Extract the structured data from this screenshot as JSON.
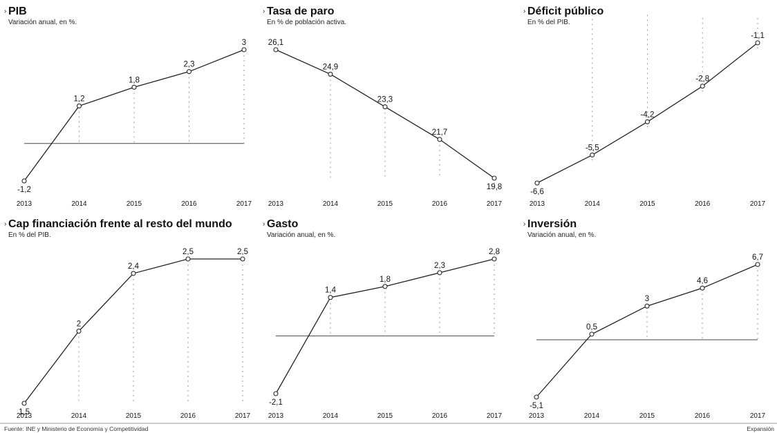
{
  "chart_data": [
    {
      "type": "line",
      "title": "PIB",
      "subtitle": "Variación anual, en %.",
      "x": [
        "2013",
        "2014",
        "2015",
        "2016",
        "2017"
      ],
      "values": [
        -1.2,
        1.2,
        1.8,
        2.3,
        3
      ],
      "value_labels": [
        "-1,2",
        "1,2",
        "1,8",
        "2,3",
        "3"
      ],
      "ylim": [
        -1.2,
        3
      ],
      "zero_line": true
    },
    {
      "type": "line",
      "title": "Tasa de paro",
      "subtitle": "En % de población activa.",
      "x": [
        "2013",
        "2014",
        "2015",
        "2016",
        "2017"
      ],
      "values": [
        26.1,
        24.9,
        23.3,
        21.7,
        19.8
      ],
      "value_labels": [
        "26,1",
        "24,9",
        "23,3",
        "21,7",
        "19,8"
      ],
      "ylim": [
        19.8,
        26.1
      ],
      "zero_line": false
    },
    {
      "type": "line",
      "title": "Déficit público",
      "subtitle": "En % del PIB.",
      "x": [
        "2013",
        "2014",
        "2015",
        "2016",
        "2017"
      ],
      "values": [
        -6.6,
        -5.5,
        -4.2,
        -2.8,
        -1.1
      ],
      "value_labels": [
        "-6,6",
        "-5,5",
        "-4,2",
        "-2,8",
        "-1,1"
      ],
      "ylim": [
        -6.6,
        -1.1
      ],
      "zero_line": true
    },
    {
      "type": "line",
      "title": "Cap financiación frente al resto del mundo",
      "subtitle": "En % del PIB.",
      "x": [
        "2013",
        "2014",
        "2015",
        "2016",
        "2017"
      ],
      "values": [
        1.5,
        2,
        2.4,
        2.5,
        2.5
      ],
      "value_labels": [
        "1,5",
        "2",
        "2,4",
        "2,5",
        "2,5"
      ],
      "ylim": [
        1.5,
        2.5
      ],
      "zero_line": false
    },
    {
      "type": "line",
      "title": "Gasto",
      "subtitle": "Variación anual, en %.",
      "x": [
        "2013",
        "2014",
        "2015",
        "2016",
        "2017"
      ],
      "values": [
        -2.1,
        1.4,
        1.8,
        2.3,
        2.8
      ],
      "value_labels": [
        "-2,1",
        "1,4",
        "1,8",
        "2,3",
        "2,8"
      ],
      "ylim": [
        -2.1,
        2.8
      ],
      "zero_line": true
    },
    {
      "type": "line",
      "title": "Inversión",
      "subtitle": "Variación anual, en %.",
      "x": [
        "2013",
        "2014",
        "2015",
        "2016",
        "2017"
      ],
      "values": [
        -5.1,
        0.5,
        3,
        4.6,
        6.7
      ],
      "value_labels": [
        "-5,1",
        "0,5",
        "3",
        "4,6",
        "6,7"
      ],
      "ylim": [
        -5.1,
        6.7
      ],
      "zero_line": true
    }
  ],
  "footer": {
    "source": "Fuente: INE y Ministerio de Economía y Competitividad",
    "brand": "Expansión"
  },
  "colors": {
    "line": "#222222",
    "text": "#111111",
    "axis": "#444444"
  }
}
